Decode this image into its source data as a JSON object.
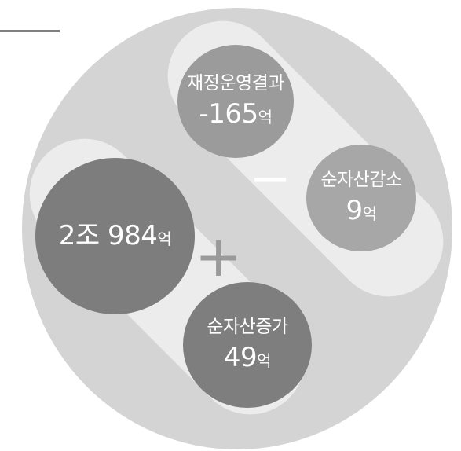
{
  "diagram": {
    "result": {
      "label": "재정운영결과",
      "value": "-165",
      "unit": "억"
    },
    "decrease": {
      "label": "순자산감소",
      "value": "9",
      "unit": "억"
    },
    "total": {
      "value": "2조 984",
      "unit": "억"
    },
    "increase": {
      "label": "순자산증가",
      "value": "49",
      "unit": "억"
    },
    "operators": {
      "minus": "−",
      "plus": "+"
    }
  },
  "colors": {
    "outer_circle": "#d4d4d4",
    "band": "#ececec",
    "result_bubble": "#9b9b9b",
    "decrease_bubble": "#a7a7a7",
    "total_bubble": "#7d7d7d",
    "increase_bubble": "#7e7e7e"
  }
}
